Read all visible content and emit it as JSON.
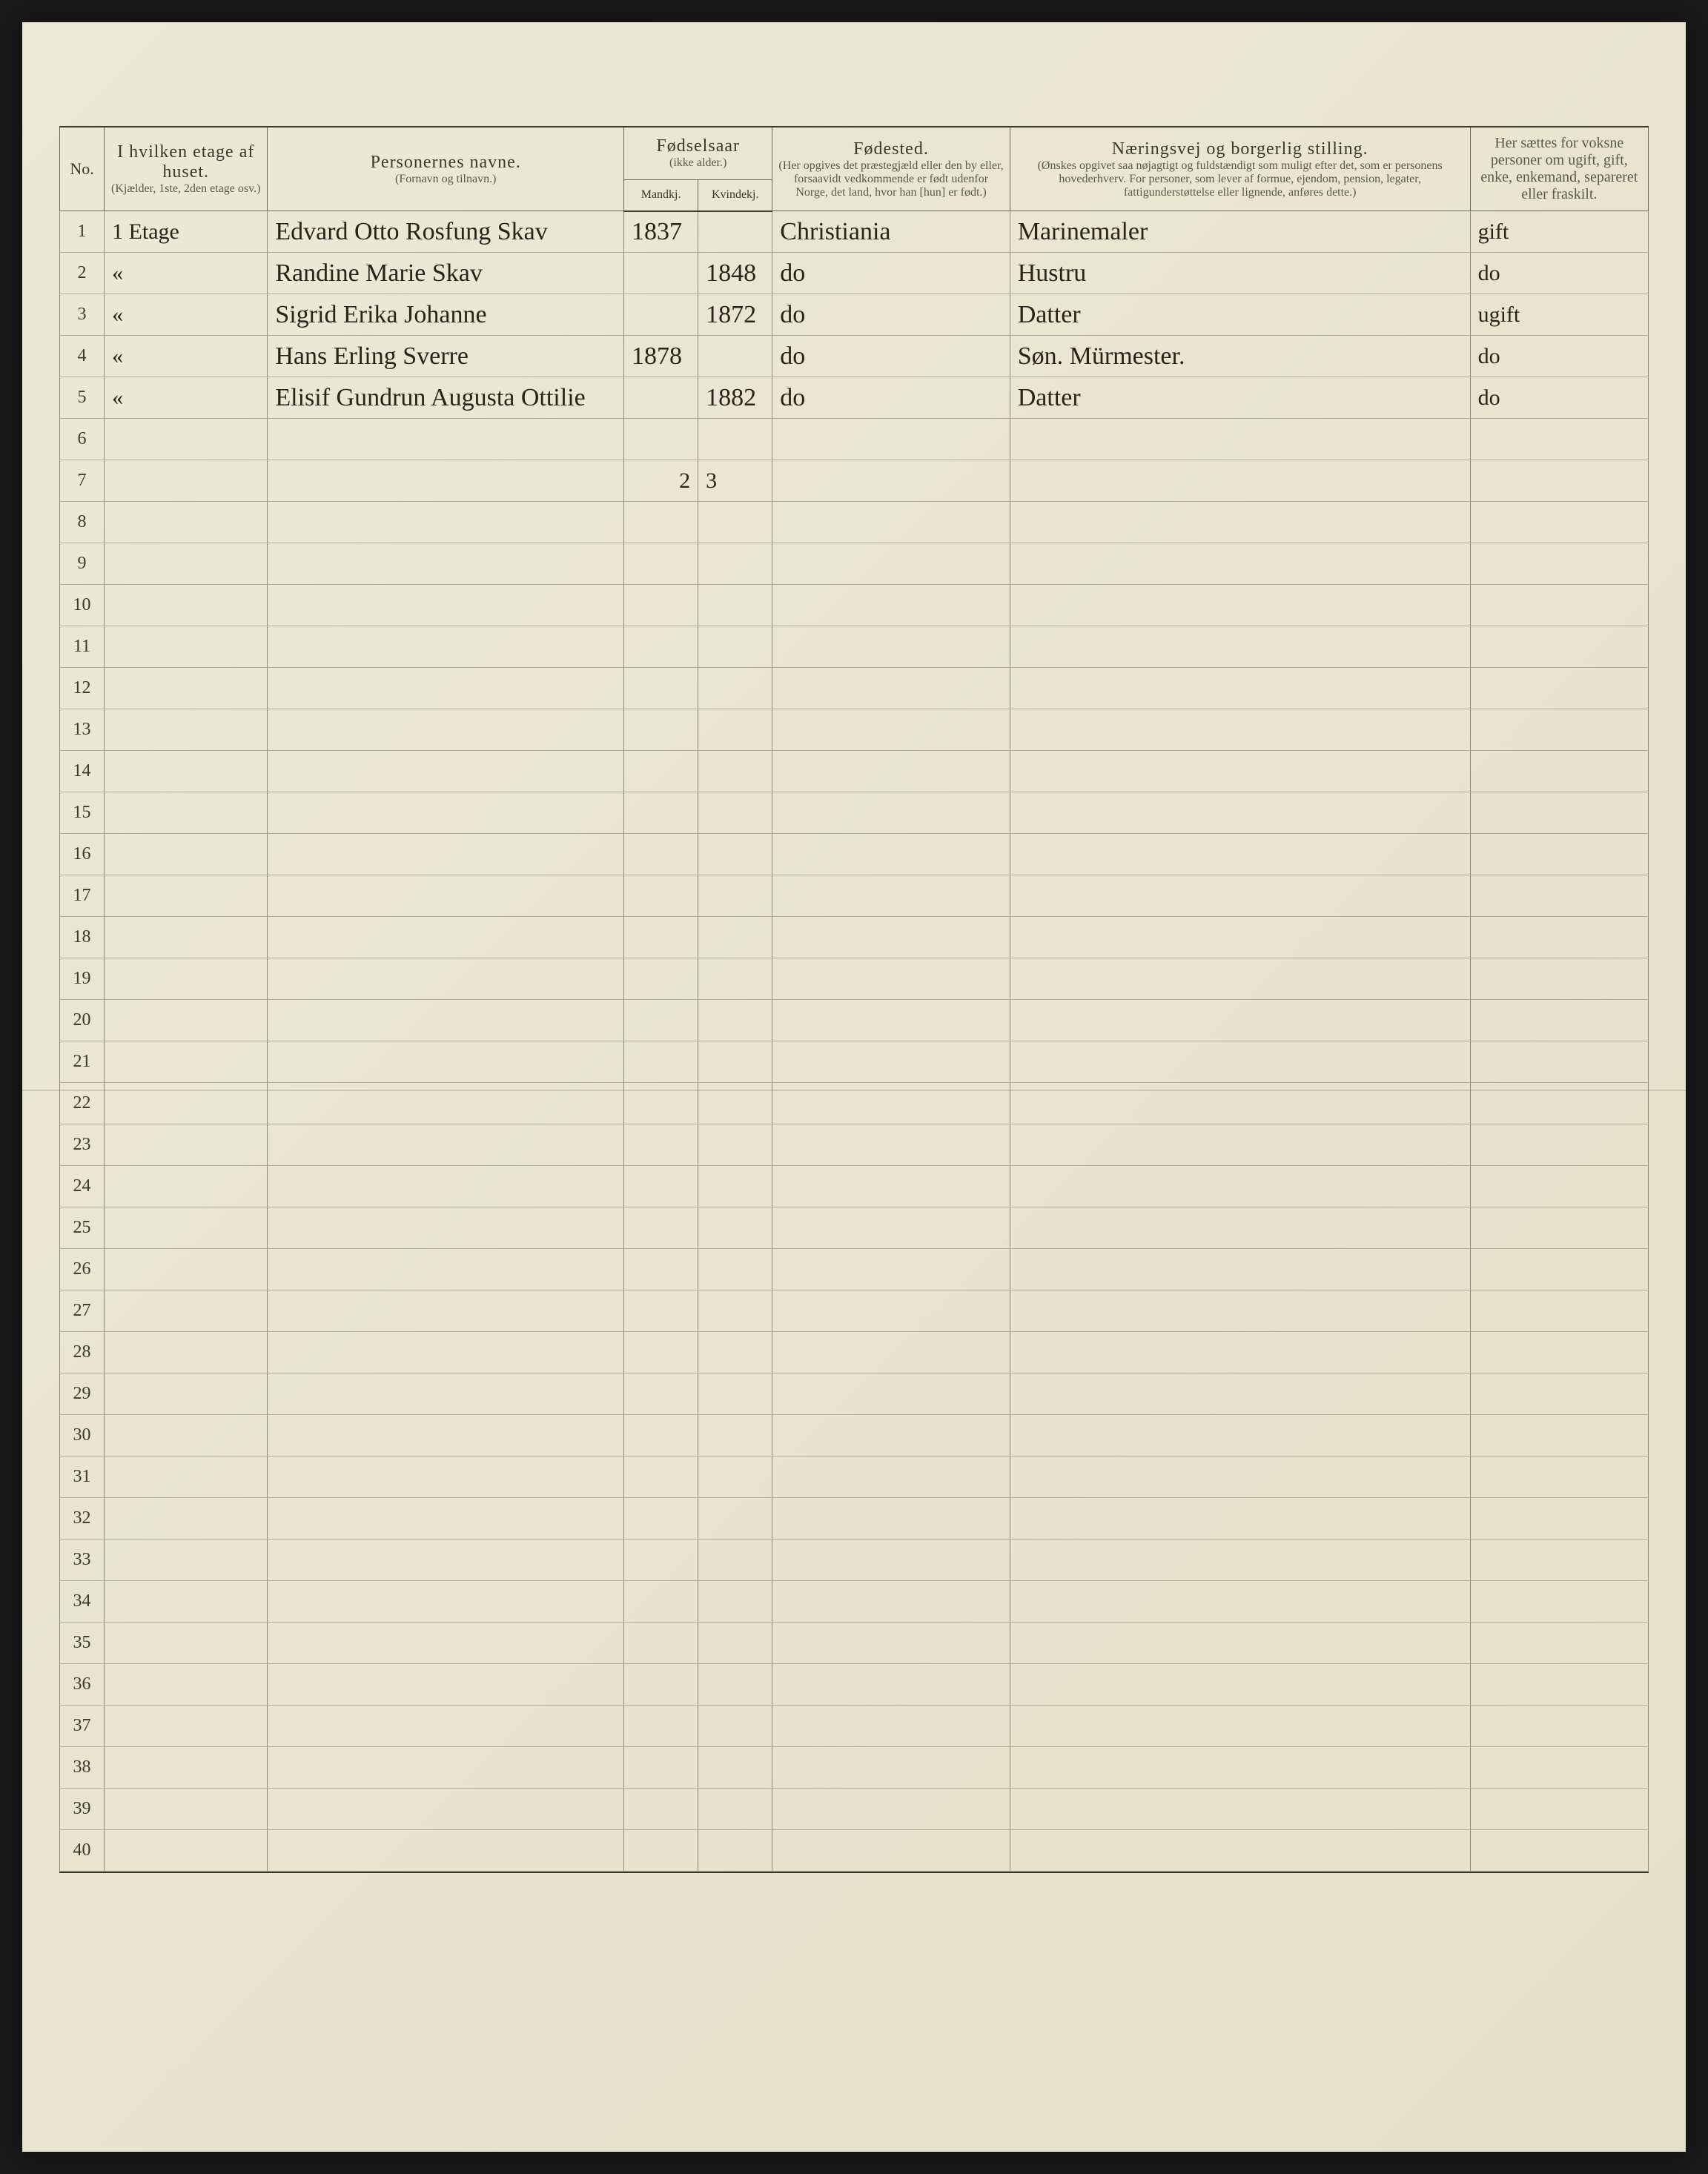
{
  "columns": {
    "no": {
      "title": "No."
    },
    "etage": {
      "title": "I hvilken etage af huset.",
      "sub": "(Kjælder, 1ste, 2den etage osv.)"
    },
    "navn": {
      "title": "Personernes navne.",
      "sub": "(Fornavn og tilnavn.)"
    },
    "fodselsaar": {
      "title": "Fødselsaar",
      "sub_top": "(ikke alder.)",
      "sub_m": "Mandkj.",
      "sub_k": "Kvindekj."
    },
    "fodested": {
      "title": "Fødested.",
      "sub": "(Her opgives det præstegjæld eller den by eller, forsaavidt vedkommende er født udenfor Norge, det land, hvor han [hun] er født.)"
    },
    "naering": {
      "title": "Næringsvej og borgerlig stilling.",
      "sub": "(Ønskes opgivet saa nøjagtigt og fuldstændigt som muligt efter det, som er personens hovederhverv. For personer, som lever af formue, ejendom, pension, legater, fattigunderstøttelse eller lignende, anføres dette.)"
    },
    "status": {
      "title": "Her sættes for voksne personer om ugift, gift, enke, enkemand, separeret eller fraskilt."
    }
  },
  "rows": [
    {
      "no": "1",
      "etage": "1 Etage",
      "navn": "Edvard Otto Rosfung Skav",
      "m": "1837",
      "k": "",
      "fodested": "Christiania",
      "naering": "Marinemaler",
      "status": "gift"
    },
    {
      "no": "2",
      "etage": "«",
      "navn": "Randine Marie Skav",
      "m": "",
      "k": "1848",
      "fodested": "do",
      "naering": "Hustru",
      "status": "do"
    },
    {
      "no": "3",
      "etage": "«",
      "navn": "Sigrid Erika Johanne",
      "m": "",
      "k": "1872",
      "fodested": "do",
      "naering": "Datter",
      "status": "ugift"
    },
    {
      "no": "4",
      "etage": "«",
      "navn": "Hans Erling Sverre",
      "m": "1878",
      "k": "",
      "fodested": "do",
      "naering": "Søn. Mürmester.",
      "status": "do"
    },
    {
      "no": "5",
      "etage": "«",
      "navn": "Elisif Gundrun Augusta Ottilie",
      "m": "",
      "k": "1882",
      "fodested": "do",
      "naering": "Datter",
      "status": "do"
    }
  ],
  "totals": {
    "m": "2",
    "k": "3"
  },
  "row_count": 40,
  "totals_row": 7,
  "colors": {
    "paper": "#e8e4d0",
    "ink": "#2a2418",
    "rule": "#8a8a7a"
  }
}
